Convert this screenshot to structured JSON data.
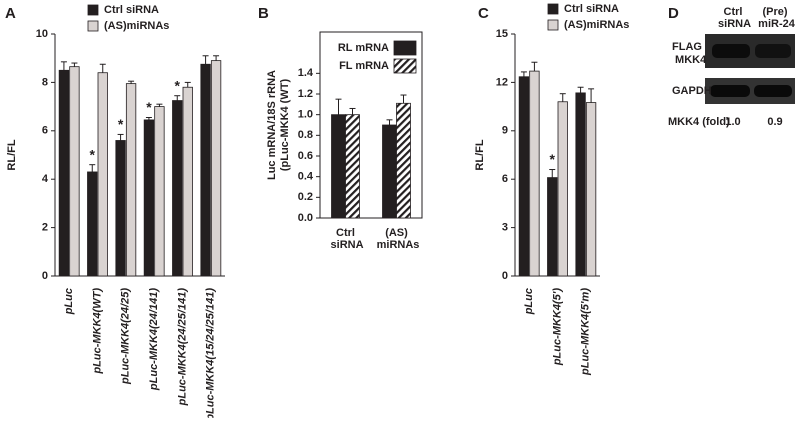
{
  "chart_data": [
    {
      "type": "bar",
      "panel": "A",
      "ylabel": [
        "RL/FL"
      ],
      "categories": [
        "pLuc",
        "pLuc-MKK4(WT)",
        "pLuc-MKK4(24/25)",
        "pLuc-MKK4(24/141)",
        "pLuc-MKK4(24/25/141)",
        "pLuc-MKK4(15/24/25/141)"
      ],
      "series": [
        {
          "name": "Ctrl siRNA",
          "color": "#231f20",
          "values": [
            8.5,
            4.3,
            5.6,
            6.45,
            7.25,
            8.75
          ],
          "errors": [
            0.35,
            0.3,
            0.25,
            0.1,
            0.2,
            0.35
          ]
        },
        {
          "name": "(AS)miRNAs",
          "color": "#d9d3d1",
          "values": [
            8.65,
            8.4,
            7.95,
            7.0,
            7.8,
            8.9
          ],
          "errors": [
            0.15,
            0.35,
            0.1,
            0.1,
            0.2,
            0.2
          ]
        }
      ],
      "markers": [
        null,
        "*",
        "*",
        "*",
        "*",
        null
      ],
      "ylim": [
        0,
        10
      ],
      "yticks": [
        0,
        2,
        4,
        6,
        8,
        10
      ],
      "legend": "above"
    },
    {
      "type": "bar",
      "panel": "B",
      "ylabel": [
        "Luc mRNA/18S rRNA",
        "(pLuc-MKK4 (WT)"
      ],
      "categories": [
        "Ctrl siRNA",
        "(AS) miRNAs"
      ],
      "series": [
        {
          "name": "RL mRNA",
          "color": "#231f20",
          "values": [
            1.0,
            0.9
          ],
          "errors": [
            0.15,
            0.05
          ]
        },
        {
          "name": "FL mRNA",
          "color": "#ffffff",
          "hatch": true,
          "values": [
            1.0,
            1.11
          ],
          "errors": [
            0.06,
            0.08
          ]
        }
      ],
      "ylim": [
        0,
        1.8
      ],
      "yticks": [
        {
          "value": 0,
          "label": "0.0"
        },
        {
          "value": 0.2,
          "label": "0.2"
        },
        {
          "value": 0.4,
          "label": "0.4"
        },
        {
          "value": 0.6,
          "label": "0.6"
        },
        {
          "value": 0.8,
          "label": "0.8"
        },
        {
          "value": 1.0,
          "label": "1.0"
        },
        {
          "value": 1.2,
          "label": "1.2"
        },
        {
          "value": 1.4,
          "label": "1.4"
        }
      ],
      "legend": "upper right"
    },
    {
      "type": "bar",
      "panel": "C",
      "ylabel": [
        "RL/FL"
      ],
      "categories": [
        "pLuc",
        "pLuc-MKK4(5')",
        "pLuc-MKK4(5'm)"
      ],
      "series": [
        {
          "name": "Ctrl siRNA",
          "color": "#231f20",
          "values": [
            12.35,
            6.1,
            11.35
          ],
          "errors": [
            0.3,
            0.5,
            0.35
          ]
        },
        {
          "name": "(AS)miRNAs",
          "color": "#d9d3d1",
          "values": [
            12.7,
            10.8,
            10.75
          ],
          "errors": [
            0.55,
            0.5,
            0.85
          ]
        }
      ],
      "markers": [
        null,
        "*",
        null
      ],
      "ylim": [
        0,
        15
      ],
      "yticks": [
        0,
        3,
        6,
        9,
        12,
        15
      ],
      "legend": "above"
    }
  ],
  "blot": {
    "panel": "D",
    "lanes": [
      "Ctrl siRNA",
      "(Pre) miR-24"
    ],
    "rows": [
      "FLAG MKK4",
      "GAPDH"
    ],
    "fold_label": "MKK4 (fold)",
    "fold": [
      "1.0",
      "0.9"
    ]
  }
}
